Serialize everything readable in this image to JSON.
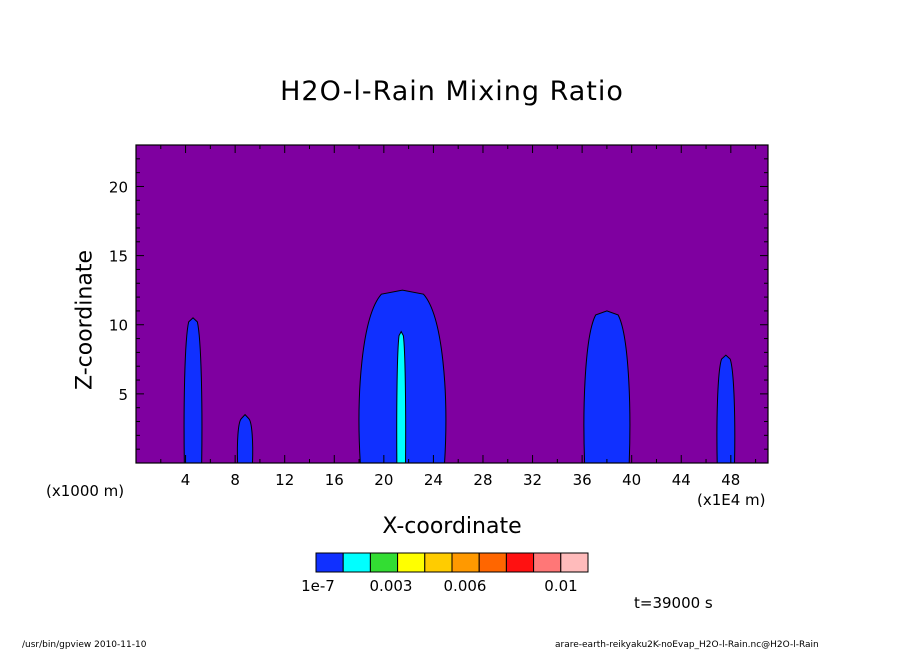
{
  "chart_data": {
    "type": "heatmap",
    "title": "H2O-l-Rain Mixing Ratio",
    "xlabel": "X-coordinate",
    "ylabel": "Z-coordinate",
    "x_unit": "(x1000 m)",
    "x_scale": "(x1E4 m)",
    "xlim": [
      0,
      51
    ],
    "ylim": [
      0,
      23
    ],
    "xticks": [
      4,
      8,
      12,
      16,
      20,
      24,
      28,
      32,
      36,
      40,
      44,
      48
    ],
    "yticks": [
      5,
      10,
      15,
      20
    ],
    "background_color": "#7f00a0",
    "colorbar": {
      "colors": [
        "#1030ff",
        "#00ffff",
        "#33dd33",
        "#ffff00",
        "#ffcc00",
        "#ff9900",
        "#ff6600",
        "#ff1111",
        "#ff7777",
        "#ffbbbb"
      ],
      "labels": [
        "1e-7",
        "0.003",
        "0.006",
        "0.01"
      ]
    },
    "cells": [
      {
        "x_center": 4.6,
        "half_width": 0.7,
        "top": 10.5
      },
      {
        "x_center": 8.8,
        "half_width": 0.6,
        "top": 3.5
      },
      {
        "x_center": 21.5,
        "half_width": 3.4,
        "top": 12.5
      },
      {
        "x_center": 38.0,
        "half_width": 1.8,
        "top": 11.0
      },
      {
        "x_center": 47.6,
        "half_width": 0.7,
        "top": 7.8
      }
    ],
    "core": {
      "x_center": 21.4,
      "half_width": 0.35,
      "top": 9.5
    }
  },
  "time_label": "t=39000 s",
  "footer_left": "/usr/bin/gpview  2010-11-10",
  "footer_right": "arare-earth-reikyaku2K-noEvap_H2O-l-Rain.nc@H2O-l-Rain"
}
